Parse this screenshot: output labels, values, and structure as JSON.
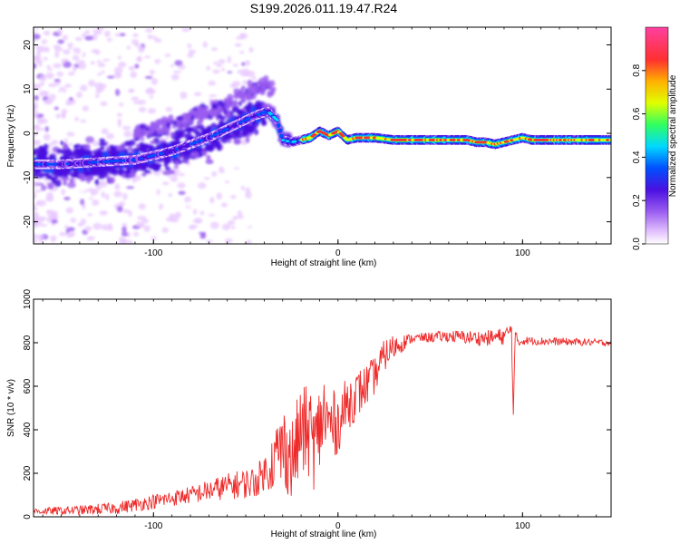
{
  "figure": {
    "title": "S199.2026.011.19.47.R24"
  },
  "colorbar": {
    "label": "Normalized spectral amplitude",
    "ticks": [
      "0.0",
      "0.2",
      "0.4",
      "0.6",
      "0.8"
    ],
    "tick_values": [
      0.0,
      0.2,
      0.4,
      0.6,
      0.8
    ],
    "range": [
      0,
      1
    ]
  },
  "chart_data": [
    {
      "type": "heatmap",
      "title": "",
      "xlabel": "Height of straight line (km)",
      "ylabel": "Frequency (Hz)",
      "xlim": [
        -165,
        148
      ],
      "ylim": [
        -25,
        24
      ],
      "x_ticks": [
        -100,
        0,
        100
      ],
      "x_tick_labels": [
        "-100",
        "0",
        "100"
      ],
      "y_ticks": [
        20,
        10,
        0,
        -10,
        -20
      ],
      "y_tick_labels": [
        "20",
        "10",
        "0",
        "-10",
        "-20"
      ],
      "ridge": {
        "description_points_x": [
          -165,
          -150,
          -130,
          -110,
          -90,
          -70,
          -55,
          -45,
          -38,
          -33,
          -30,
          -25,
          -20,
          -15,
          -10,
          -5,
          0,
          5,
          10,
          20,
          30,
          40,
          50,
          60,
          70,
          75,
          80,
          85,
          90,
          95,
          100,
          105,
          110,
          120,
          130,
          140,
          148
        ],
        "frequency_hz": [
          -7,
          -7,
          -6.5,
          -6,
          -4,
          -1,
          2,
          4,
          5,
          3,
          -1.5,
          -2,
          -1.5,
          -1,
          0.5,
          -0.5,
          0.5,
          -1.5,
          -1,
          -1,
          -1.5,
          -1.5,
          -1.5,
          -1.5,
          -1.5,
          -2,
          -2,
          -2.5,
          -2,
          -1.5,
          -1,
          -1.5,
          -1.5,
          -1.5,
          -1.5,
          -1.5,
          -1.5
        ]
      },
      "colorscale": [
        "#ffffff",
        "#e8c8ff",
        "#9a5cf0",
        "#4a10e0",
        "#0050ff",
        "#00d8ff",
        "#30ff60",
        "#e0ff00",
        "#ff3030",
        "#ff40a0"
      ]
    },
    {
      "type": "line",
      "title": "",
      "xlabel": "Height of straight line (km)",
      "ylabel": "SNR (10 * v/v)",
      "xlim": [
        -165,
        148
      ],
      "ylim": [
        0,
        1000
      ],
      "x_ticks": [
        -100,
        0,
        100
      ],
      "x_tick_labels": [
        "-100",
        "0",
        "100"
      ],
      "y_ticks": [
        0,
        200,
        400,
        600,
        800,
        1000
      ],
      "y_tick_labels": [
        "0",
        "200",
        "400",
        "600",
        "800",
        "1000"
      ],
      "series": [
        {
          "name": "SNR",
          "color": "#ee2a2a",
          "anchor_x": [
            -165,
            -140,
            -120,
            -100,
            -80,
            -60,
            -45,
            -38,
            -32,
            -28,
            -25,
            -20,
            -15,
            -12,
            -8,
            -5,
            0,
            5,
            10,
            15,
            20,
            25,
            30,
            40,
            60,
            80,
            90,
            94,
            95,
            96,
            98,
            100,
            120,
            148
          ],
          "anchor_y": [
            25,
            30,
            40,
            70,
            100,
            140,
            160,
            220,
            300,
            320,
            250,
            400,
            380,
            320,
            480,
            420,
            430,
            520,
            560,
            600,
            650,
            740,
            780,
            820,
            830,
            820,
            830,
            860,
            480,
            830,
            800,
            810,
            805,
            800
          ],
          "noise_amplitude_x": [
            -165,
            -80,
            -40,
            -30,
            -10,
            0,
            30,
            40,
            90,
            100,
            148
          ],
          "noise_amplitude_y": [
            15,
            40,
            80,
            200,
            220,
            140,
            60,
            20,
            40,
            20,
            15
          ]
        }
      ]
    }
  ]
}
